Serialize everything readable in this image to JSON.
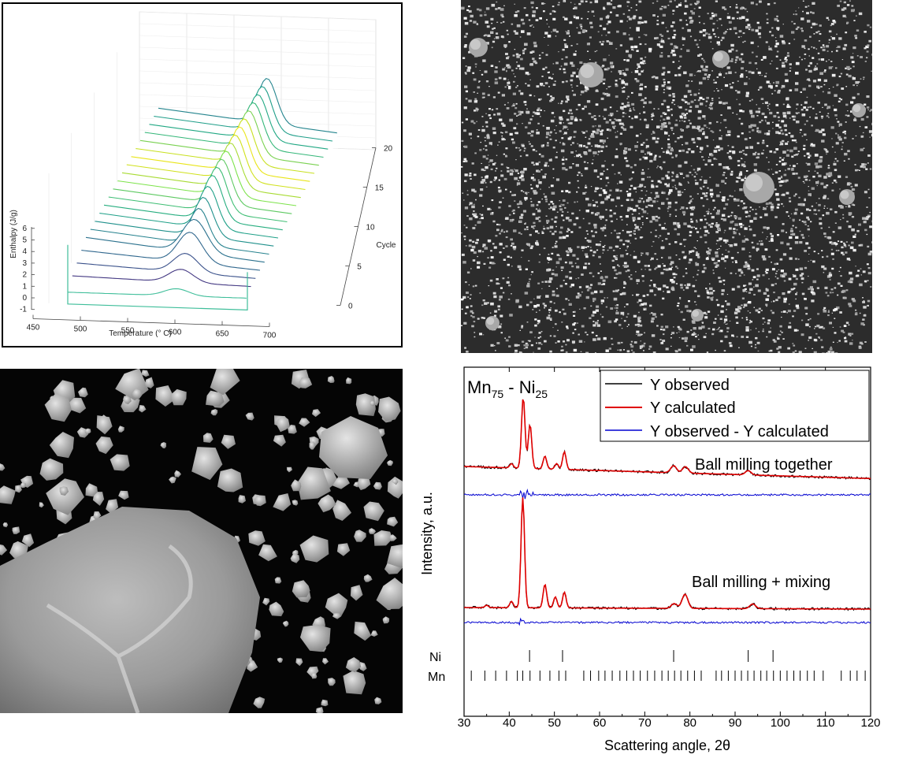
{
  "panel_a": {
    "chart_data": {
      "type": "line",
      "zlabel": "Enthalpy (J/g)",
      "xlabel": "Temperature (° C)",
      "ylabel": "Cycle",
      "x_ticks": [
        "450",
        "500",
        "550",
        "600",
        "650",
        "700"
      ],
      "y_ticks": [
        "0",
        "5",
        "10",
        "15",
        "20"
      ],
      "z_ticks": [
        "-1",
        "0",
        "1",
        "2",
        "3",
        "4",
        "5",
        "6"
      ],
      "xlim": [
        450,
        700
      ],
      "ylim": [
        0,
        20
      ],
      "zlim": [
        -1,
        6
      ],
      "series_count": 20,
      "peak_temperature": 585,
      "colormap": [
        "#7de34b",
        "#d8e22c",
        "#3fbe74",
        "#21918c",
        "#2c728e",
        "#3b528b",
        "#472d7b"
      ]
    }
  },
  "panel_b": {
    "image": "sem-micrograph-fine-powder"
  },
  "panel_c": {
    "image": "sem-micrograph-large-particle"
  },
  "panel_d": {
    "chart_data": {
      "type": "line",
      "title_main": "Mn",
      "title_sub1": "75",
      "title_sep": " - Ni",
      "title_sub2": "25",
      "xlabel": "Scattering angle, 2θ",
      "ylabel": "Intensity, a.u.",
      "xlim": [
        30,
        120
      ],
      "x_ticks": [
        "30",
        "40",
        "50",
        "60",
        "70",
        "80",
        "90",
        "100",
        "110",
        "120"
      ],
      "legend": [
        "Y observed",
        "Y calculated",
        "Y observed - Y calculated"
      ],
      "legend_colors": [
        "#000000",
        "#e00000",
        "#0000d0"
      ],
      "annotations": [
        "Ball milling together",
        "Ball milling + mixing"
      ],
      "ni_label": "Ni",
      "mn_label": "Mn",
      "ni_reflections": [
        44.5,
        51.8,
        76.4,
        92.9,
        98.4
      ],
      "mn_reflections": [
        31.6,
        34.6,
        37.0,
        39.4,
        41.8,
        43.0,
        44.6,
        46.8,
        49.0,
        51.0,
        52.5,
        56.5,
        58.0,
        59.8,
        61.2,
        62.8,
        64.5,
        66.0,
        67.5,
        69.0,
        70.6,
        72.2,
        73.8,
        75.2,
        76.6,
        78.0,
        79.5,
        81.0,
        82.5,
        85.8,
        87.0,
        88.5,
        90.0,
        91.4,
        92.8,
        94.2,
        95.7,
        97.0,
        98.5,
        100.0,
        101.5,
        103.0,
        104.4,
        106.0,
        107.5,
        109.5,
        113.5,
        115.5,
        117.0,
        118.8
      ],
      "series": [
        {
          "name": "Ball milling together",
          "peaks": [
            [
              43.1,
              100
            ],
            [
              44.6,
              62
            ],
            [
              47.9,
              18
            ],
            [
              52.2,
              25
            ],
            [
              50.5,
              8
            ],
            [
              76.4,
              10
            ],
            [
              79.0,
              9
            ],
            [
              92.9,
              6
            ],
            [
              40.5,
              6
            ]
          ],
          "background_start": 20,
          "background_end": 3
        },
        {
          "name": "Ball milling + mixing",
          "peaks": [
            [
              43.0,
              140
            ],
            [
              47.9,
              30
            ],
            [
              50.2,
              14
            ],
            [
              52.2,
              20
            ],
            [
              40.5,
              8
            ],
            [
              78.9,
              18
            ],
            [
              76.5,
              6
            ],
            [
              93.9,
              6
            ],
            [
              35.0,
              3
            ]
          ],
          "background_start": 2,
          "background_end": 0
        }
      ]
    }
  }
}
